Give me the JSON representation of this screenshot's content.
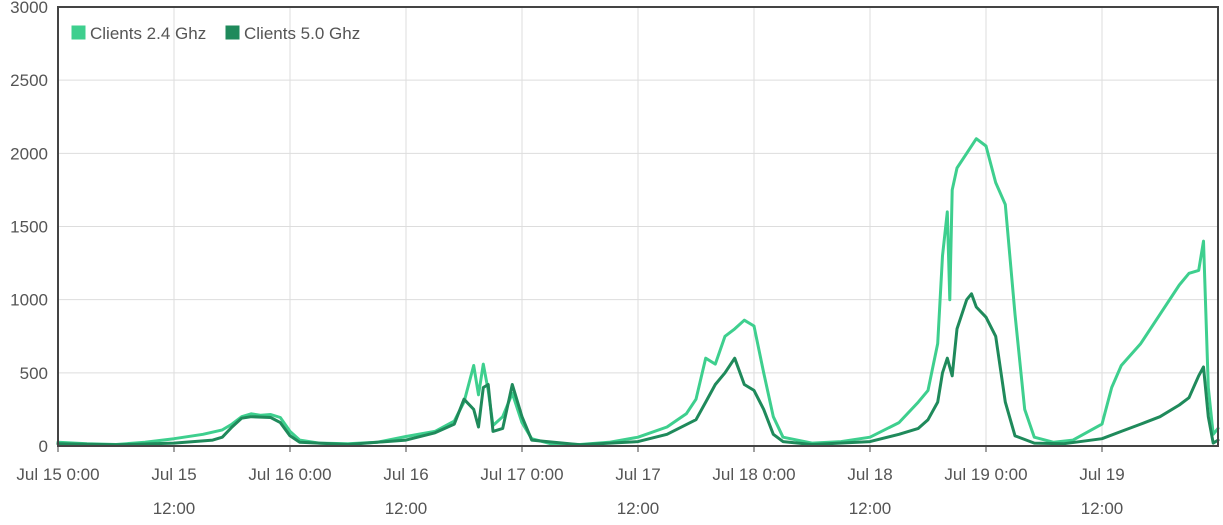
{
  "chart_data": {
    "type": "line",
    "title": "",
    "xlabel": "",
    "ylabel": "",
    "x_domain": [
      "2023-07-15T00:00",
      "2023-07-20T00:00"
    ],
    "ylim": [
      0,
      3000
    ],
    "grid": true,
    "legend_position": "top-left",
    "y_ticks": [
      "0",
      "500",
      "1000",
      "1500",
      "2000",
      "2500",
      "3000"
    ],
    "x_ticks": [
      {
        "t": "2023-07-15T00:00",
        "line1": "Jul 15 0:00",
        "line2": ""
      },
      {
        "t": "2023-07-15T12:00",
        "line1": "Jul 15",
        "line2": "12:00"
      },
      {
        "t": "2023-07-16T00:00",
        "line1": "Jul 16 0:00",
        "line2": ""
      },
      {
        "t": "2023-07-16T12:00",
        "line1": "Jul 16",
        "line2": "12:00"
      },
      {
        "t": "2023-07-17T00:00",
        "line1": "Jul 17 0:00",
        "line2": ""
      },
      {
        "t": "2023-07-17T12:00",
        "line1": "Jul 17",
        "line2": "12:00"
      },
      {
        "t": "2023-07-18T00:00",
        "line1": "Jul 18 0:00",
        "line2": ""
      },
      {
        "t": "2023-07-18T12:00",
        "line1": "Jul 18",
        "line2": "12:00"
      },
      {
        "t": "2023-07-19T00:00",
        "line1": "Jul 19 0:00",
        "line2": ""
      },
      {
        "t": "2023-07-19T12:00",
        "line1": "Jul 19",
        "line2": "12:00"
      }
    ],
    "series": [
      {
        "name": "Clients 2.4 Ghz",
        "color": "#3ecf8e",
        "points": [
          [
            "2023-07-15T00:00",
            25
          ],
          [
            "2023-07-15T03:00",
            15
          ],
          [
            "2023-07-15T06:00",
            10
          ],
          [
            "2023-07-15T09:00",
            25
          ],
          [
            "2023-07-15T12:00",
            50
          ],
          [
            "2023-07-15T15:00",
            80
          ],
          [
            "2023-07-15T17:00",
            110
          ],
          [
            "2023-07-15T18:00",
            150
          ],
          [
            "2023-07-15T19:00",
            200
          ],
          [
            "2023-07-15T20:00",
            220
          ],
          [
            "2023-07-15T21:00",
            210
          ],
          [
            "2023-07-15T22:00",
            215
          ],
          [
            "2023-07-15T23:00",
            195
          ],
          [
            "2023-07-16T00:00",
            100
          ],
          [
            "2023-07-16T01:00",
            40
          ],
          [
            "2023-07-16T03:00",
            20
          ],
          [
            "2023-07-16T06:00",
            15
          ],
          [
            "2023-07-16T09:00",
            25
          ],
          [
            "2023-07-16T12:00",
            65
          ],
          [
            "2023-07-16T15:00",
            100
          ],
          [
            "2023-07-16T17:00",
            170
          ],
          [
            "2023-07-16T18:00",
            300
          ],
          [
            "2023-07-16T19:00",
            550
          ],
          [
            "2023-07-16T19:30",
            350
          ],
          [
            "2023-07-16T20:00",
            560
          ],
          [
            "2023-07-16T20:30",
            380
          ],
          [
            "2023-07-16T21:00",
            140
          ],
          [
            "2023-07-16T22:00",
            200
          ],
          [
            "2023-07-16T23:00",
            360
          ],
          [
            "2023-07-17T00:00",
            160
          ],
          [
            "2023-07-17T01:00",
            50
          ],
          [
            "2023-07-17T03:00",
            15
          ],
          [
            "2023-07-17T06:00",
            10
          ],
          [
            "2023-07-17T09:00",
            25
          ],
          [
            "2023-07-17T12:00",
            60
          ],
          [
            "2023-07-17T15:00",
            130
          ],
          [
            "2023-07-17T17:00",
            220
          ],
          [
            "2023-07-17T18:00",
            320
          ],
          [
            "2023-07-17T19:00",
            600
          ],
          [
            "2023-07-17T20:00",
            560
          ],
          [
            "2023-07-17T21:00",
            750
          ],
          [
            "2023-07-17T22:00",
            800
          ],
          [
            "2023-07-17T23:00",
            860
          ],
          [
            "2023-07-18T00:00",
            820
          ],
          [
            "2023-07-18T01:00",
            500
          ],
          [
            "2023-07-18T02:00",
            200
          ],
          [
            "2023-07-18T03:00",
            60
          ],
          [
            "2023-07-18T06:00",
            20
          ],
          [
            "2023-07-18T09:00",
            30
          ],
          [
            "2023-07-18T12:00",
            60
          ],
          [
            "2023-07-18T15:00",
            160
          ],
          [
            "2023-07-18T17:00",
            300
          ],
          [
            "2023-07-18T18:00",
            380
          ],
          [
            "2023-07-18T19:00",
            700
          ],
          [
            "2023-07-18T19:30",
            1300
          ],
          [
            "2023-07-18T20:00",
            1600
          ],
          [
            "2023-07-18T20:15",
            1000
          ],
          [
            "2023-07-18T20:30",
            1750
          ],
          [
            "2023-07-18T21:00",
            1900
          ],
          [
            "2023-07-18T22:00",
            2000
          ],
          [
            "2023-07-18T23:00",
            2100
          ],
          [
            "2023-07-19T00:00",
            2050
          ],
          [
            "2023-07-19T01:00",
            1800
          ],
          [
            "2023-07-19T02:00",
            1650
          ],
          [
            "2023-07-19T03:00",
            900
          ],
          [
            "2023-07-19T04:00",
            250
          ],
          [
            "2023-07-19T05:00",
            60
          ],
          [
            "2023-07-19T07:00",
            25
          ],
          [
            "2023-07-19T09:00",
            40
          ],
          [
            "2023-07-19T12:00",
            150
          ],
          [
            "2023-07-19T13:00",
            400
          ],
          [
            "2023-07-19T14:00",
            550
          ],
          [
            "2023-07-19T16:00",
            700
          ],
          [
            "2023-07-19T18:00",
            900
          ],
          [
            "2023-07-19T20:00",
            1100
          ],
          [
            "2023-07-19T21:00",
            1180
          ],
          [
            "2023-07-19T22:00",
            1200
          ],
          [
            "2023-07-19T22:30",
            1400
          ],
          [
            "2023-07-19T23:00",
            400
          ],
          [
            "2023-07-19T23:30",
            80
          ],
          [
            "2023-07-20T00:00",
            120
          ]
        ]
      },
      {
        "name": "Clients 5.0 Ghz",
        "color": "#1f8a5b",
        "points": [
          [
            "2023-07-15T00:00",
            15
          ],
          [
            "2023-07-15T06:00",
            8
          ],
          [
            "2023-07-15T12:00",
            20
          ],
          [
            "2023-07-15T16:00",
            40
          ],
          [
            "2023-07-15T17:00",
            60
          ],
          [
            "2023-07-15T18:00",
            130
          ],
          [
            "2023-07-15T19:00",
            190
          ],
          [
            "2023-07-15T20:00",
            200
          ],
          [
            "2023-07-15T22:00",
            195
          ],
          [
            "2023-07-15T23:00",
            160
          ],
          [
            "2023-07-16T00:00",
            70
          ],
          [
            "2023-07-16T01:00",
            25
          ],
          [
            "2023-07-16T06:00",
            10
          ],
          [
            "2023-07-16T12:00",
            40
          ],
          [
            "2023-07-16T15:00",
            90
          ],
          [
            "2023-07-16T17:00",
            150
          ],
          [
            "2023-07-16T18:00",
            320
          ],
          [
            "2023-07-16T19:00",
            250
          ],
          [
            "2023-07-16T19:30",
            130
          ],
          [
            "2023-07-16T20:00",
            400
          ],
          [
            "2023-07-16T20:30",
            420
          ],
          [
            "2023-07-16T21:00",
            100
          ],
          [
            "2023-07-16T22:00",
            120
          ],
          [
            "2023-07-16T23:00",
            420
          ],
          [
            "2023-07-17T00:00",
            200
          ],
          [
            "2023-07-17T01:00",
            40
          ],
          [
            "2023-07-17T06:00",
            8
          ],
          [
            "2023-07-17T12:00",
            30
          ],
          [
            "2023-07-17T15:00",
            80
          ],
          [
            "2023-07-17T18:00",
            180
          ],
          [
            "2023-07-17T19:00",
            300
          ],
          [
            "2023-07-17T20:00",
            420
          ],
          [
            "2023-07-17T21:00",
            500
          ],
          [
            "2023-07-17T22:00",
            600
          ],
          [
            "2023-07-17T23:00",
            420
          ],
          [
            "2023-07-18T00:00",
            380
          ],
          [
            "2023-07-18T01:00",
            250
          ],
          [
            "2023-07-18T02:00",
            80
          ],
          [
            "2023-07-18T03:00",
            30
          ],
          [
            "2023-07-18T06:00",
            10
          ],
          [
            "2023-07-18T12:00",
            30
          ],
          [
            "2023-07-18T15:00",
            80
          ],
          [
            "2023-07-18T17:00",
            120
          ],
          [
            "2023-07-18T18:00",
            180
          ],
          [
            "2023-07-18T19:00",
            300
          ],
          [
            "2023-07-18T19:30",
            500
          ],
          [
            "2023-07-18T20:00",
            600
          ],
          [
            "2023-07-18T20:30",
            480
          ],
          [
            "2023-07-18T21:00",
            800
          ],
          [
            "2023-07-18T22:00",
            1000
          ],
          [
            "2023-07-18T22:30",
            1040
          ],
          [
            "2023-07-18T23:00",
            950
          ],
          [
            "2023-07-19T00:00",
            880
          ],
          [
            "2023-07-19T01:00",
            750
          ],
          [
            "2023-07-19T02:00",
            300
          ],
          [
            "2023-07-19T03:00",
            70
          ],
          [
            "2023-07-19T05:00",
            20
          ],
          [
            "2023-07-19T08:00",
            15
          ],
          [
            "2023-07-19T12:00",
            50
          ],
          [
            "2023-07-19T14:00",
            100
          ],
          [
            "2023-07-19T16:00",
            150
          ],
          [
            "2023-07-19T18:00",
            200
          ],
          [
            "2023-07-19T20:00",
            280
          ],
          [
            "2023-07-19T21:00",
            330
          ],
          [
            "2023-07-19T22:00",
            480
          ],
          [
            "2023-07-19T22:30",
            540
          ],
          [
            "2023-07-19T23:00",
            200
          ],
          [
            "2023-07-19T23:30",
            20
          ],
          [
            "2023-07-20T00:00",
            40
          ]
        ]
      }
    ]
  }
}
